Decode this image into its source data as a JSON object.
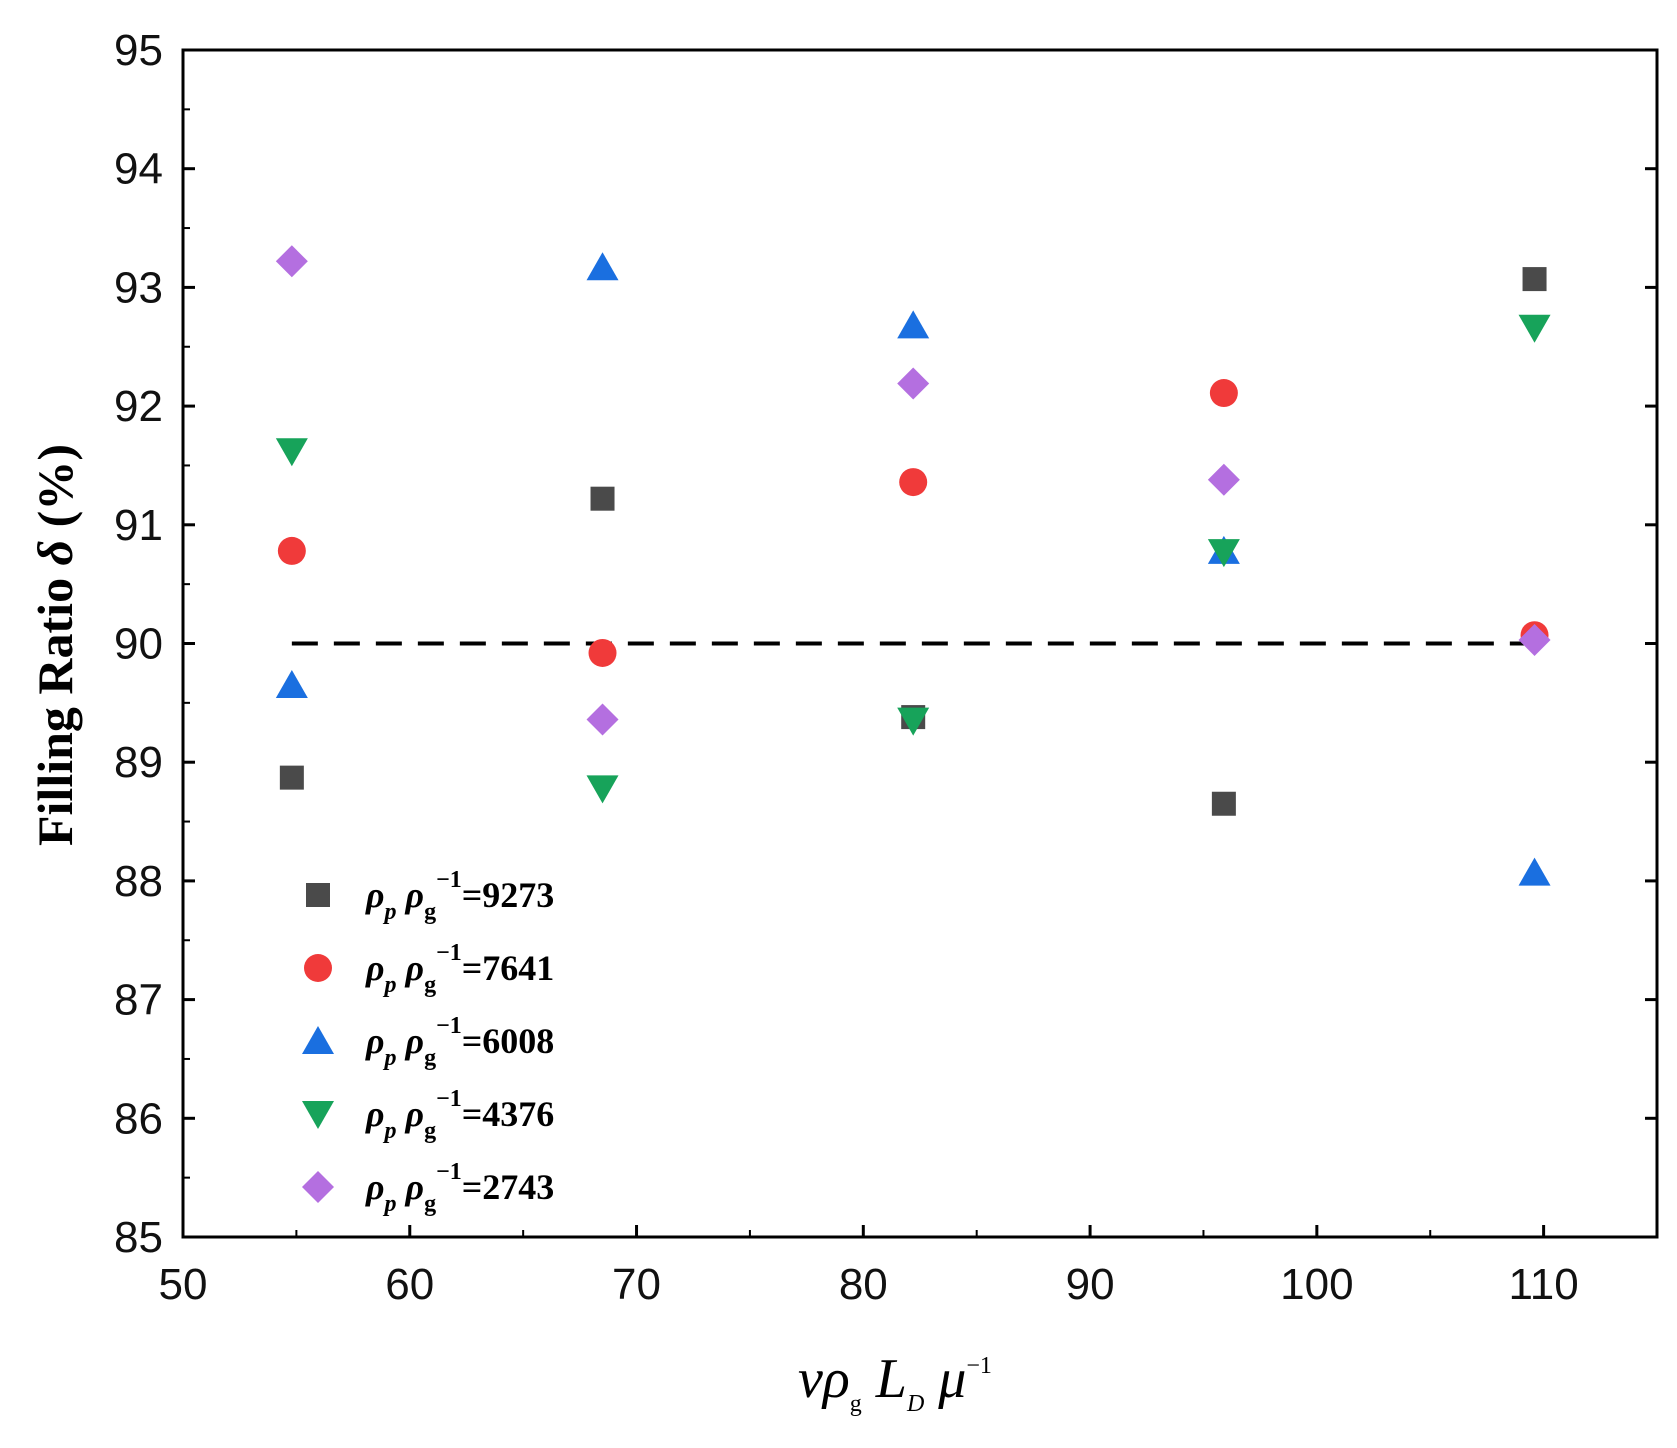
{
  "chart_data": {
    "type": "scatter",
    "title": "",
    "xlabel": {
      "a": "vρ",
      "sub": "g",
      "b": " L",
      "sub2": "D",
      "c": " μ",
      "sup": "−1"
    },
    "ylabel": {
      "a": "Filling Ratio ",
      "sym": "δ",
      "b": " (%)"
    },
    "xlim": [
      50,
      115
    ],
    "ylim": [
      85,
      95
    ],
    "xticks": [
      50,
      60,
      70,
      80,
      90,
      100,
      110
    ],
    "yticks": [
      85,
      86,
      87,
      88,
      89,
      90,
      91,
      92,
      93,
      94,
      95
    ],
    "grid": false,
    "legend_position": "lower-left",
    "reference_line": {
      "y": 90,
      "style": "dashed",
      "color": "#000000"
    },
    "x": [
      54.8,
      68.5,
      82.2,
      95.9,
      109.6
    ],
    "series": [
      {
        "name": "ρp ρg−1=9273",
        "legend": {
          "rho1": "ρ",
          "sub1": "p",
          "rho2": " ρ",
          "sub2": "g",
          "sup": "−1",
          "value": "=9273"
        },
        "marker": "square",
        "color": "#4a4a4a",
        "values": [
          88.87,
          91.22,
          89.38,
          88.65,
          93.07
        ]
      },
      {
        "name": "ρp ρg−1=7641",
        "legend": {
          "rho1": "ρ",
          "sub1": "p",
          "rho2": " ρ",
          "sub2": "g",
          "sup": "−1",
          "value": "=7641"
        },
        "marker": "circle",
        "color": "#f03a3a",
        "values": [
          90.78,
          89.92,
          91.36,
          92.11,
          90.07
        ]
      },
      {
        "name": "ρp ρg−1=6008",
        "legend": {
          "rho1": "ρ",
          "sub1": "p",
          "rho2": " ρ",
          "sub2": "g",
          "sup": "−1",
          "value": "=6008"
        },
        "marker": "triangle-up",
        "color": "#1a6fe0",
        "values": [
          89.65,
          93.17,
          92.68,
          90.78,
          88.07
        ]
      },
      {
        "name": "ρp ρg−1=4376",
        "legend": {
          "rho1": "ρ",
          "sub1": "p",
          "rho2": " ρ",
          "sub2": "g",
          "sup": "−1",
          "value": "=4376"
        },
        "marker": "triangle-down",
        "color": "#17a35a",
        "values": [
          91.62,
          88.78,
          89.35,
          90.77,
          92.66
        ]
      },
      {
        "name": "ρp ρg−1=2743",
        "legend": {
          "rho1": "ρ",
          "sub1": "p",
          "rho2": " ρ",
          "sub2": "g",
          "sup": "−1",
          "value": "=2743"
        },
        "marker": "diamond",
        "color": "#b46fe0",
        "values": [
          93.22,
          89.36,
          92.19,
          91.38,
          90.03
        ]
      }
    ]
  }
}
